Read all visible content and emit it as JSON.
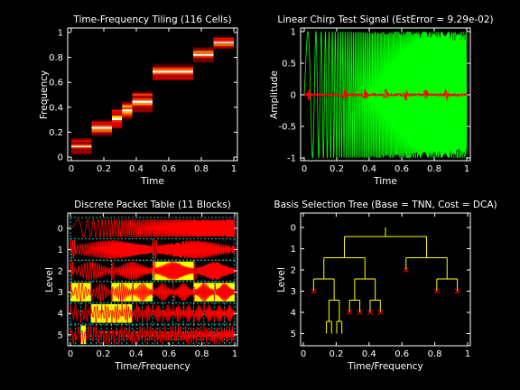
{
  "chart_data": [
    {
      "type": "heatmap",
      "title": "Time-Frequency Tiling (116 Cells)",
      "xlabel": "Time",
      "ylabel": "Frequency",
      "xlim": [
        0,
        1
      ],
      "ylim": [
        0,
        1
      ],
      "xticks": [
        "0",
        "0.2",
        "0.4",
        "0.6",
        "0.8",
        "1"
      ],
      "yticks": [
        "0",
        "0.2",
        "0.4",
        "0.6",
        "0.8",
        "1"
      ],
      "colormap": "hot",
      "tiles": [
        {
          "t0": 0.0,
          "t1": 0.125,
          "f0": 0.02,
          "f1": 0.15,
          "v": 0.5
        },
        {
          "t0": 0.125,
          "t1": 0.25,
          "f0": 0.17,
          "f1": 0.3,
          "v": 0.6
        },
        {
          "t0": 0.25,
          "t1": 0.3125,
          "f0": 0.23,
          "f1": 0.38,
          "v": 0.7
        },
        {
          "t0": 0.3125,
          "t1": 0.375,
          "f0": 0.3,
          "f1": 0.45,
          "v": 0.7
        },
        {
          "t0": 0.375,
          "t1": 0.5,
          "f0": 0.36,
          "f1": 0.53,
          "v": 0.6
        },
        {
          "t0": 0.5,
          "t1": 0.75,
          "f0": 0.62,
          "f1": 0.75,
          "v": 0.55
        },
        {
          "t0": 0.75,
          "t1": 0.875,
          "f0": 0.76,
          "f1": 0.88,
          "v": 0.6
        },
        {
          "t0": 0.875,
          "t1": 1.0,
          "f0": 0.87,
          "f1": 0.97,
          "v": 0.65
        }
      ]
    },
    {
      "type": "line",
      "title": "Linear Chirp Test Signal (EstError = 9.29e-02)",
      "xlabel": "Time",
      "ylabel": "Amplitude",
      "xlim": [
        0,
        1
      ],
      "ylim": [
        -1,
        1
      ],
      "xticks": [
        "0",
        "0.2",
        "0.4",
        "0.6",
        "0.8",
        "1"
      ],
      "yticks": [
        "-1",
        "-0.5",
        "0",
        "0.5",
        "1"
      ],
      "series": [
        {
          "color": "#00ff00",
          "kind": "linear chirp",
          "amplitude": 1.0
        },
        {
          "color": "#ff0000",
          "kind": "estimation error",
          "amplitude": 0.12
        }
      ]
    },
    {
      "type": "table",
      "title": "Discrete Packet Table (11 Blocks)",
      "xlabel": "Time/Frequency",
      "ylabel": "Level",
      "xlim": [
        0,
        1
      ],
      "ylim": [
        0,
        5
      ],
      "xticks": [
        "0",
        "0.2",
        "0.4",
        "0.6",
        "0.8",
        "1"
      ],
      "yticks": [
        "0",
        "1",
        "2",
        "3",
        "4",
        "5"
      ],
      "selected_blocks": [
        {
          "level": 2,
          "index": 2
        },
        {
          "level": 3,
          "index": 0
        },
        {
          "level": 3,
          "index": 2
        },
        {
          "level": 3,
          "index": 3
        },
        {
          "level": 3,
          "index": 6
        },
        {
          "level": 3,
          "index": 7
        },
        {
          "level": 4,
          "index": 2
        },
        {
          "level": 4,
          "index": 3
        },
        {
          "level": 4,
          "index": 4
        },
        {
          "level": 4,
          "index": 5
        },
        {
          "level": 5,
          "index": 2
        }
      ],
      "fill_color": "#ffff00",
      "grid_color": "#00ffff",
      "trace_color": "#ff0000"
    },
    {
      "type": "diagram",
      "title": "Basis Selection Tree (Base = TNN, Cost = DCA)",
      "xlabel": "Time/Frequency",
      "ylabel": "Level",
      "xlim": [
        0,
        1
      ],
      "ylim": [
        0,
        5
      ],
      "xticks": [
        "0",
        "0.2",
        "0.4",
        "0.6",
        "0.8",
        "1"
      ],
      "yticks": [
        "0",
        "1",
        "2",
        "3",
        "4",
        "5"
      ],
      "tree_color": "#ffff00",
      "leaf_color": "#ff0000",
      "leaves": [
        {
          "level": 3,
          "x": 0.0625
        },
        {
          "level": 5,
          "x": 0.15625
        },
        {
          "level": 5,
          "x": 0.21875
        },
        {
          "level": 4,
          "x": 0.28125
        },
        {
          "level": 4,
          "x": 0.34375
        },
        {
          "level": 4,
          "x": 0.40625
        },
        {
          "level": 4,
          "x": 0.46875
        },
        {
          "level": 2,
          "x": 0.625
        },
        {
          "level": 3,
          "x": 0.8125
        },
        {
          "level": 3,
          "x": 0.9375
        }
      ]
    }
  ]
}
